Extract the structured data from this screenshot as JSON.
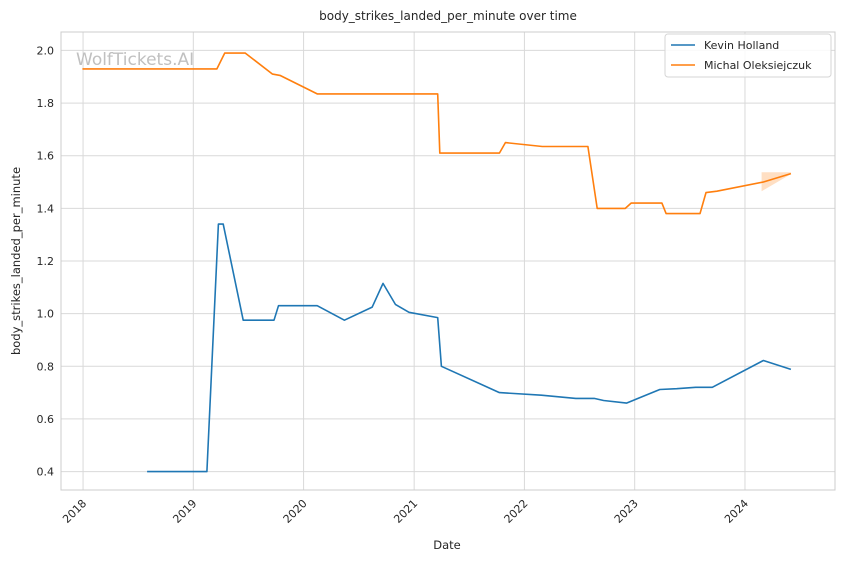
{
  "chart_data": {
    "type": "line",
    "title": "body_strikes_landed_per_minute over time",
    "xlabel": "Date",
    "ylabel": "body_strikes_landed_per_minute",
    "watermark": "WolfTickets.AI",
    "xlim": [
      "2017-10-20",
      "2024-10-25"
    ],
    "ylim": [
      0.33,
      2.07
    ],
    "x_ticks": [
      "2018-01-01",
      "2019-01-01",
      "2020-01-01",
      "2021-01-01",
      "2022-01-01",
      "2023-01-01",
      "2024-01-01"
    ],
    "x_tick_labels": [
      "2018",
      "2019",
      "2020",
      "2021",
      "2022",
      "2023",
      "2024"
    ],
    "y_ticks": [
      0.4,
      0.6,
      0.8,
      1.0,
      1.2,
      1.4,
      1.6,
      1.8,
      2.0
    ],
    "y_tick_labels": [
      "0.4",
      "0.6",
      "0.8",
      "1.0",
      "1.2",
      "1.4",
      "1.6",
      "1.8",
      "2.0"
    ],
    "grid": true,
    "legend_position": "top-right",
    "series": [
      {
        "name": "Kevin Holland",
        "color": "#1f77b4",
        "points": [
          [
            "2018-08-01",
            0.4
          ],
          [
            "2019-02-15",
            0.4
          ],
          [
            "2019-03-25",
            1.34
          ],
          [
            "2019-04-10",
            1.34
          ],
          [
            "2019-06-15",
            0.975
          ],
          [
            "2019-09-25",
            0.975
          ],
          [
            "2019-10-10",
            1.03
          ],
          [
            "2020-02-15",
            1.03
          ],
          [
            "2020-05-15",
            0.975
          ],
          [
            "2020-08-15",
            1.025
          ],
          [
            "2020-09-20",
            1.115
          ],
          [
            "2020-10-31",
            1.035
          ],
          [
            "2020-12-15",
            1.005
          ],
          [
            "2021-03-20",
            0.985
          ],
          [
            "2021-04-01",
            0.8
          ],
          [
            "2021-10-10",
            0.7
          ],
          [
            "2022-02-26",
            0.69
          ],
          [
            "2022-06-20",
            0.678
          ],
          [
            "2022-08-20",
            0.678
          ],
          [
            "2022-09-20",
            0.67
          ],
          [
            "2022-12-05",
            0.66
          ],
          [
            "2023-03-25",
            0.712
          ],
          [
            "2023-05-20",
            0.715
          ],
          [
            "2023-07-22",
            0.72
          ],
          [
            "2023-09-15",
            0.72
          ],
          [
            "2024-03-02",
            0.822
          ],
          [
            "2024-06-01",
            0.788
          ]
        ]
      },
      {
        "name": "Michal Oleksiejczuk",
        "color": "#ff7f0e",
        "points": [
          [
            "2017-12-30",
            1.93
          ],
          [
            "2019-03-20",
            1.93
          ],
          [
            "2019-04-15",
            1.99
          ],
          [
            "2019-06-22",
            1.99
          ],
          [
            "2019-09-20",
            1.91
          ],
          [
            "2019-10-15",
            1.905
          ],
          [
            "2020-02-15",
            1.835
          ],
          [
            "2021-03-20",
            1.835
          ],
          [
            "2021-03-27",
            1.61
          ],
          [
            "2021-10-10",
            1.61
          ],
          [
            "2021-10-30",
            1.65
          ],
          [
            "2022-03-01",
            1.635
          ],
          [
            "2022-07-30",
            1.635
          ],
          [
            "2022-08-30",
            1.4
          ],
          [
            "2022-12-01",
            1.4
          ],
          [
            "2022-12-20",
            1.42
          ],
          [
            "2023-04-01",
            1.42
          ],
          [
            "2023-04-15",
            1.38
          ],
          [
            "2023-08-05",
            1.38
          ],
          [
            "2023-08-25",
            1.46
          ],
          [
            "2023-09-30",
            1.465
          ],
          [
            "2024-03-02",
            1.5
          ],
          [
            "2024-06-01",
            1.532
          ]
        ],
        "band": {
          "upper": [
            [
              "2024-02-25",
              1.537
            ],
            [
              "2024-06-01",
              1.537
            ]
          ],
          "lower": [
            [
              "2024-02-25",
              1.465
            ],
            [
              "2024-06-01",
              1.53
            ]
          ]
        }
      }
    ]
  }
}
